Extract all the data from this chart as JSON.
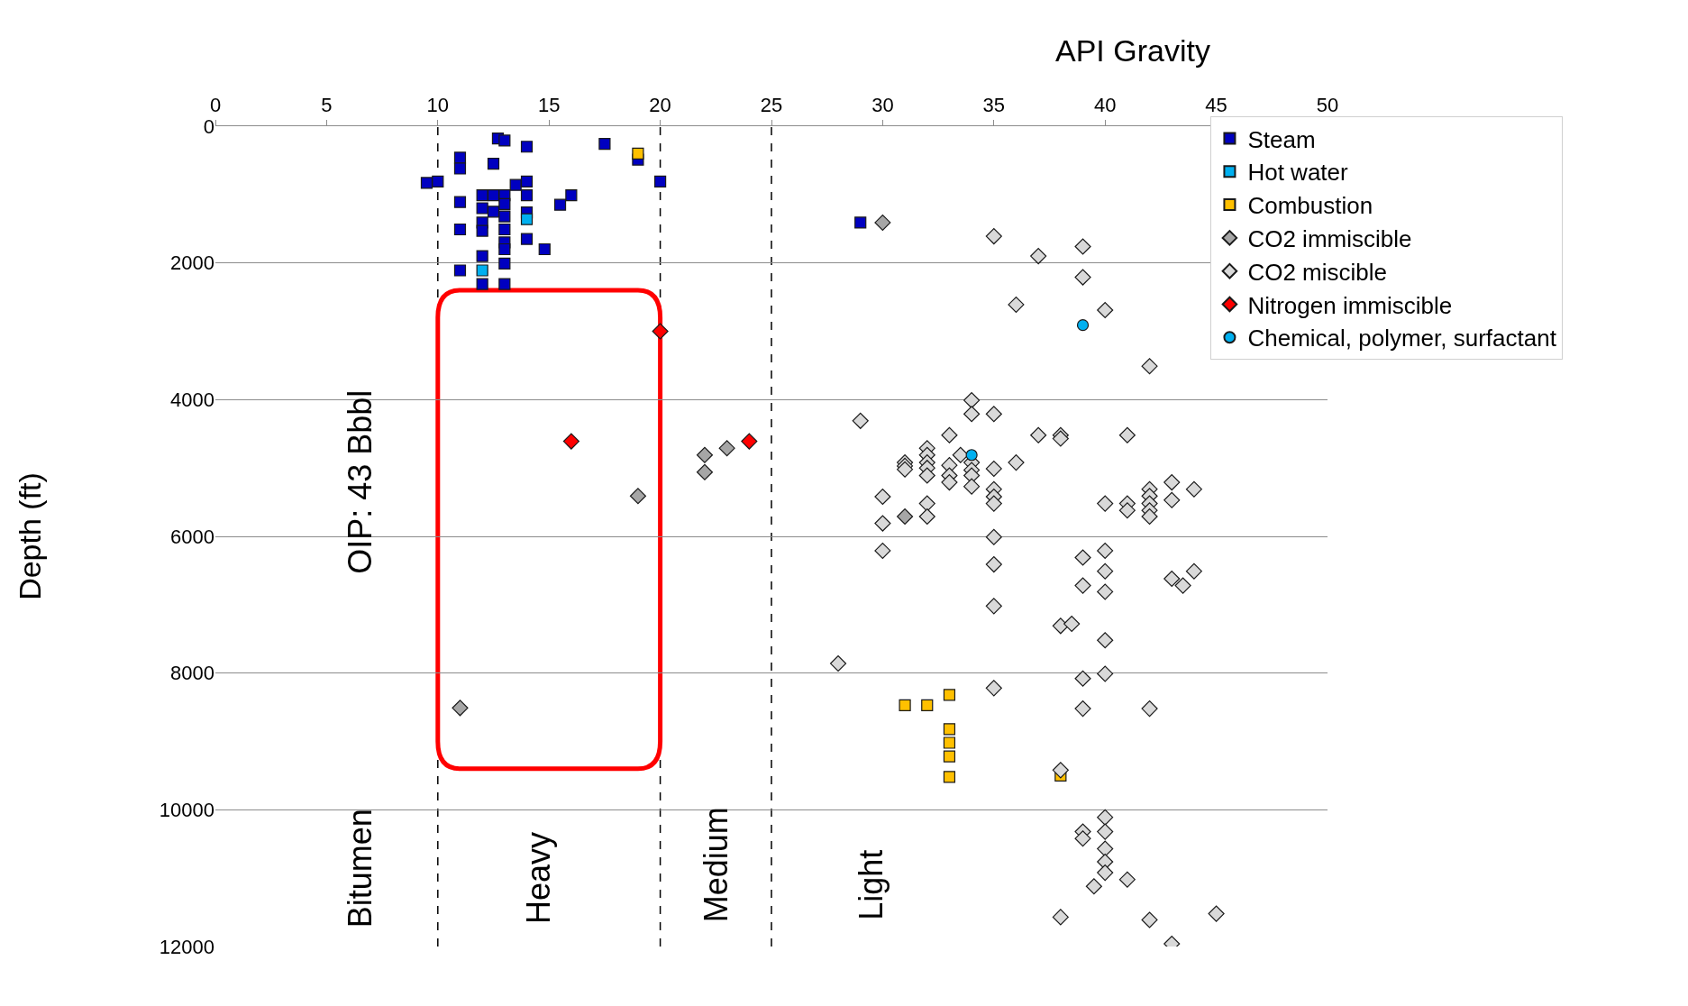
{
  "chart_data": {
    "type": "scatter",
    "title": "API Gravity",
    "ylabel": "Depth (ft)",
    "xlim": [
      0,
      50
    ],
    "xticks": [
      0,
      5,
      10,
      15,
      20,
      25,
      30,
      35,
      40,
      45,
      50
    ],
    "ylim": [
      12000,
      0
    ],
    "yticks": [
      0,
      2000,
      4000,
      6000,
      8000,
      10000,
      12000
    ],
    "grid": "y",
    "legend": "top right",
    "ref_lines": [
      {
        "axis": "x",
        "value": 10,
        "label": null,
        "line_style": "dashed",
        "color": "#000000"
      },
      {
        "axis": "x",
        "value": 20,
        "label": null,
        "line_style": "dashed",
        "color": "#000000"
      },
      {
        "axis": "x",
        "value": 25,
        "label": null,
        "line_style": "dashed",
        "color": "#000000"
      }
    ],
    "annotations": [
      "OIP: 43 Bbbl",
      "Bitumen",
      "Heavy",
      "Medium",
      "Light"
    ],
    "series": [
      {
        "name": "Steam",
        "color": "#0000c0",
        "marker": "square",
        "x": [
          12.7,
          13,
          14,
          17.5,
          19,
          11,
          11,
          12.5,
          9.5,
          10,
          20,
          13.5,
          14,
          12,
          12.5,
          13,
          14,
          16,
          15.5,
          11,
          12,
          12.5,
          13,
          13,
          14,
          12,
          12,
          11,
          13,
          13,
          13,
          14,
          14.8,
          12,
          13,
          11,
          12,
          13,
          29
        ],
        "values": [
          180,
          210,
          300,
          260,
          490,
          460,
          620,
          550,
          830,
          810,
          810,
          860,
          810,
          1010,
          1010,
          1010,
          1010,
          1010,
          1150,
          1110,
          1200,
          1250,
          1140,
          1320,
          1260,
          1410,
          1530,
          1510,
          1510,
          1700,
          1800,
          1650,
          1800,
          1900,
          2010,
          2110,
          2310,
          2310,
          1410
        ]
      },
      {
        "name": "Hot water",
        "color": "#00b0f0",
        "marker": "square",
        "x": [
          14,
          12
        ],
        "values": [
          1360,
          2110
        ]
      },
      {
        "name": "Combustion",
        "color": "#ffc000",
        "marker": "square",
        "x": [
          19,
          31,
          32,
          33,
          33,
          33,
          33,
          33,
          38
        ],
        "values": [
          400,
          8470,
          8470,
          8320,
          8820,
          9020,
          9220,
          9520,
          9500
        ]
      },
      {
        "name": "CO2 immiscible",
        "color": "#a6a6a6",
        "marker": "diamond",
        "x": [
          19,
          22,
          22,
          23,
          11,
          30,
          31
        ],
        "values": [
          5410,
          4810,
          5060,
          4710,
          8510,
          1410,
          5710
        ]
      },
      {
        "name": "CO2 miscible",
        "color": "#d9d9d9",
        "marker": "diamond",
        "x": [
          35,
          37,
          39,
          39,
          36,
          40,
          42,
          34,
          29,
          34,
          35,
          33,
          37,
          38,
          38,
          41,
          33.5,
          31,
          31,
          31,
          32,
          32,
          32,
          32,
          32,
          33,
          33,
          33,
          34,
          34,
          34,
          34,
          35,
          36,
          35,
          35,
          35,
          30,
          32,
          30,
          32,
          40,
          41,
          41,
          42,
          42,
          42,
          42,
          42,
          43,
          43,
          44,
          35,
          30,
          39,
          40,
          35,
          40,
          43,
          43.5,
          44,
          39,
          40,
          35,
          38,
          38.5,
          40,
          28,
          39,
          40,
          35,
          39,
          42,
          38,
          40,
          39,
          39,
          40,
          40,
          40,
          40,
          41,
          39.5,
          38,
          42,
          45,
          43
        ],
        "values": [
          1610,
          1900,
          1760,
          2210,
          2610,
          2690,
          3510,
          4010,
          4310,
          4210,
          4210,
          4520,
          4520,
          4520,
          4570,
          4520,
          4810,
          4920,
          4970,
          5020,
          4710,
          4810,
          4920,
          5000,
          5110,
          4960,
          5110,
          5210,
          4920,
          5030,
          5110,
          5270,
          5010,
          4920,
          5310,
          5420,
          5520,
          5420,
          5520,
          5810,
          5710,
          5520,
          5520,
          5620,
          5310,
          5410,
          5520,
          5620,
          5710,
          5210,
          5470,
          5310,
          6010,
          6210,
          6310,
          6210,
          6410,
          6510,
          6620,
          6720,
          6510,
          6720,
          6810,
          7020,
          7310,
          7280,
          7520,
          7860,
          8080,
          8010,
          8220,
          8520,
          8520,
          9420,
          10110,
          10320,
          10420,
          10320,
          10570,
          10760,
          10920,
          11020,
          11120,
          11570,
          11610,
          11520,
          11960
        ]
      },
      {
        "name": "Nitrogen immiscible",
        "color": "#ff0000",
        "marker": "diamond",
        "x": [
          16,
          24,
          20
        ],
        "values": [
          4610,
          4610,
          3000
        ]
      },
      {
        "name": "Chemical, polymer, surfactant",
        "color": "#00b0f0",
        "marker": "circle",
        "x": [
          39,
          34
        ],
        "values": [
          2910,
          4810
        ]
      }
    ]
  }
}
